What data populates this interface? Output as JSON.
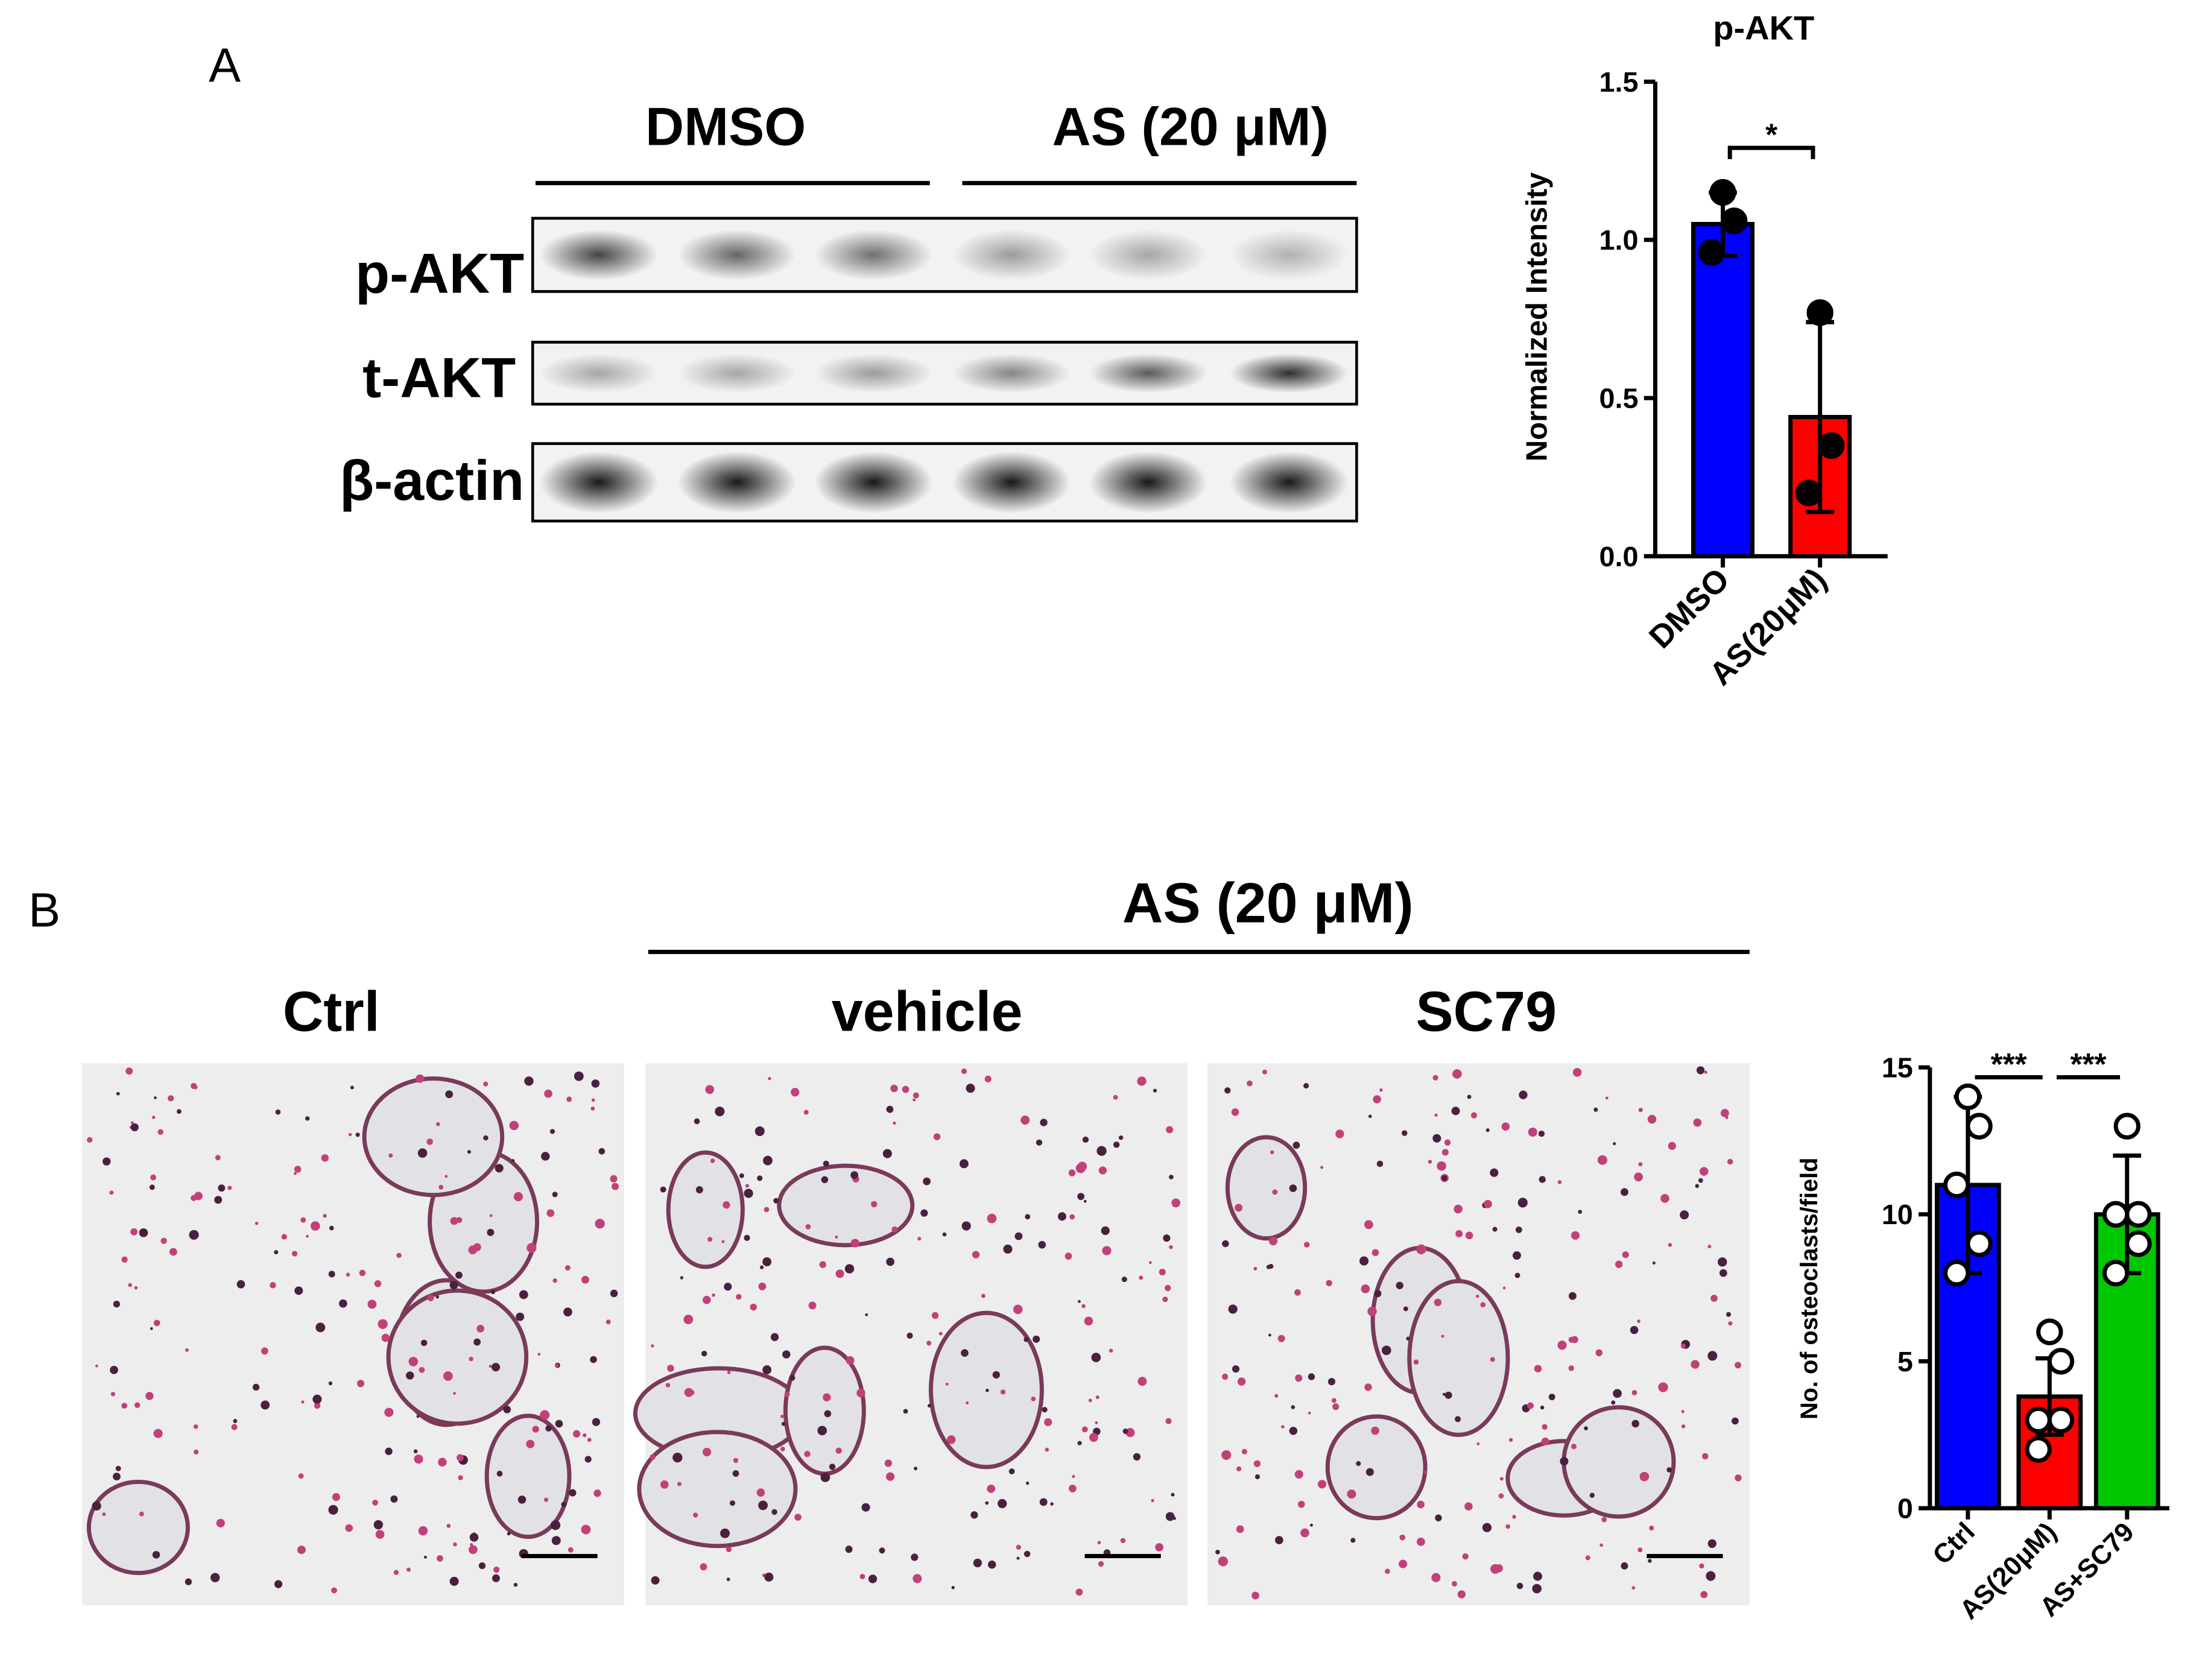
{
  "panel_a": {
    "label": "A",
    "groups": [
      "DMSO",
      "AS (20 μM)"
    ],
    "rows": [
      "p-AKT",
      "t-AKT",
      "β-actin"
    ]
  },
  "panel_b": {
    "label": "B",
    "group": "AS (20 μM)",
    "columns": [
      "Ctrl",
      "vehicle",
      "SC79"
    ]
  },
  "chart_data": [
    {
      "type": "bar",
      "title": "p-AKT",
      "y_label": "Normalized Intensity",
      "categories": [
        "DMSO",
        "AS(20μM)"
      ],
      "values": [
        1.05,
        0.44
      ],
      "errors": [
        0.1,
        0.3
      ],
      "points": [
        [
          1.15,
          1.06,
          0.96
        ],
        [
          0.77,
          0.35,
          0.2
        ]
      ],
      "colors": [
        "#0000ff",
        "#ff0000"
      ],
      "ylim": [
        0,
        1.5
      ],
      "yticks": [
        {
          "value": 0,
          "label": "0.0"
        },
        0.5,
        {
          "value": 1,
          "label": "1.0"
        },
        1.5
      ],
      "annotations": [
        "*"
      ]
    },
    {
      "type": "bar",
      "y_label": "No. of osteoclasts/field",
      "categories": [
        "Ctrl",
        "AS(20μM)",
        "AS+SC79"
      ],
      "values": [
        11,
        3.8,
        10
      ],
      "errors": [
        3,
        1.3,
        2
      ],
      "points": [
        [
          14,
          13,
          11,
          9,
          8
        ],
        [
          6,
          5,
          3,
          3,
          2
        ],
        [
          13,
          10,
          10,
          9,
          8
        ]
      ],
      "colors": [
        "#0000ff",
        "#ff0000",
        "#00c800"
      ],
      "ylim": [
        0,
        15
      ],
      "yticks": [
        0,
        5,
        10,
        15
      ],
      "annotations": [
        "***",
        "***"
      ]
    }
  ]
}
